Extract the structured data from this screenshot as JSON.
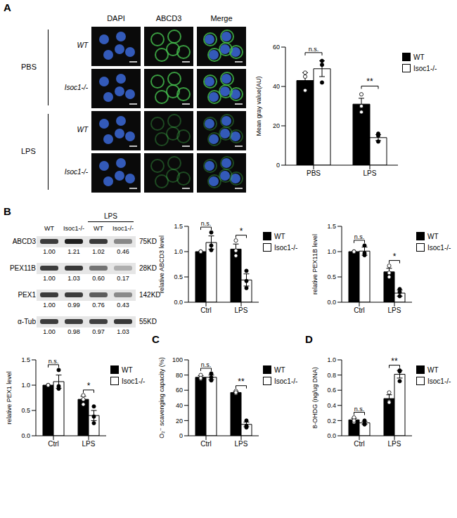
{
  "chart_data": [
    {
      "type": "image_grid",
      "panel": "A",
      "columns": [
        "DAPI",
        "ABCD3",
        "Merge"
      ],
      "groups": [
        {
          "label": "PBS",
          "rows": [
            "WT",
            "Isoc1-/-"
          ]
        },
        {
          "label": "LPS",
          "rows": [
            "WT",
            "Isoc1-/-"
          ]
        }
      ]
    },
    {
      "type": "bar",
      "y_label": "Mean gray value(AU)",
      "categories": [
        "PBS",
        "LPS"
      ],
      "series": [
        {
          "name": "WT",
          "color": "#000000",
          "marker": "circle",
          "values": [
            43,
            31
          ],
          "errors": [
            4,
            3
          ],
          "points": [
            [
              47,
              38,
              45
            ],
            [
              36,
              30,
              27
            ]
          ]
        },
        {
          "name": "Isoc1-/-",
          "color": "#ffffff",
          "marker": "circle",
          "values": [
            49,
            14
          ],
          "errors": [
            4,
            1.5
          ],
          "points": [
            [
              53,
              42,
              51
            ],
            [
              15,
              12,
              16
            ]
          ]
        }
      ],
      "significance": [
        "n.s.",
        "**"
      ],
      "ylim": [
        0,
        60
      ],
      "yticks": [
        0,
        20,
        40,
        60
      ],
      "legend": "right"
    },
    {
      "type": "blot",
      "panel": "B",
      "columns": [
        "WT",
        "Isoc1-/-",
        "WT",
        "Isoc1-/-"
      ],
      "column_group": {
        "label": "LPS",
        "columns": [
          2,
          3
        ]
      },
      "rows": [
        {
          "name": "ABCD3",
          "size": "75KD",
          "values": [
            1.0,
            1.21,
            1.02,
            0.46
          ],
          "value_labels": [
            "1.00",
            "1.21",
            "1.02",
            "0.46"
          ]
        },
        {
          "name": "PEX11B",
          "size": "28KD",
          "values": [
            1.0,
            1.03,
            0.6,
            0.17
          ],
          "value_labels": [
            "1.00",
            "1.03",
            "0.60",
            "0.17"
          ]
        },
        {
          "name": "PEX1",
          "size": "142KD",
          "values": [
            1.0,
            0.99,
            0.76,
            0.43
          ],
          "value_labels": [
            "1.00",
            "0.99",
            "0.76",
            "0.43"
          ]
        },
        {
          "name": "α-Tub",
          "size": "55KD",
          "values": [
            1.0,
            0.98,
            0.97,
            1.03
          ],
          "value_labels": [
            "1.00",
            "0.98",
            "0.97",
            "1.03"
          ]
        }
      ]
    },
    {
      "type": "bar",
      "y_label": "relative ABCD3 level",
      "categories": [
        "Ctrl",
        "LPS"
      ],
      "series": [
        {
          "name": "WT",
          "color": "#000000",
          "marker": "circle",
          "values": [
            1.0,
            1.05
          ],
          "errors": [
            0,
            0.1
          ],
          "points": [
            [
              1.0,
              1.0,
              1.0
            ],
            [
              1.22,
              1.02,
              0.92
            ]
          ]
        },
        {
          "name": "Isoc1-/-",
          "color": "#ffffff",
          "marker": "circle",
          "values": [
            1.18,
            0.44
          ],
          "errors": [
            0.13,
            0.12
          ],
          "points": [
            [
              1.38,
              1.12,
              1.03
            ],
            [
              0.62,
              0.42,
              0.28
            ]
          ]
        }
      ],
      "significance": [
        "n.s.",
        "*"
      ],
      "ylim": [
        0,
        1.5
      ],
      "yticks": [
        {
          "value": 0,
          "label": "0.0"
        },
        0.5,
        {
          "value": 1,
          "label": "1.0"
        },
        1.5
      ],
      "legend": "right"
    },
    {
      "type": "bar",
      "y_label": "relative PEX11B level",
      "categories": [
        "Ctrl",
        "LPS"
      ],
      "series": [
        {
          "name": "WT",
          "color": "#000000",
          "marker": "circle",
          "values": [
            1.0,
            0.6
          ],
          "errors": [
            0,
            0.07
          ],
          "points": [
            [
              1.0,
              1.0,
              1.0
            ],
            [
              0.72,
              0.58,
              0.5
            ]
          ]
        },
        {
          "name": "Isoc1-/-",
          "color": "#ffffff",
          "marker": "circle",
          "values": [
            1.01,
            0.18
          ],
          "errors": [
            0.08,
            0.06
          ],
          "points": [
            [
              1.12,
              0.97,
              0.93
            ],
            [
              0.26,
              0.12,
              0.2
            ]
          ]
        }
      ],
      "significance": [
        "n.s.",
        "*"
      ],
      "ylim": [
        0,
        1.5
      ],
      "yticks": [
        {
          "value": 0,
          "label": "0.0"
        },
        0.5,
        {
          "value": 1,
          "label": "1.0"
        },
        1.5
      ],
      "legend": "right"
    },
    {
      "type": "bar",
      "y_label": "relative PEX1 level",
      "categories": [
        "Ctrl",
        "LPS"
      ],
      "series": [
        {
          "name": "WT",
          "color": "#000000",
          "marker": "circle",
          "values": [
            1.0,
            0.72
          ],
          "errors": [
            0,
            0.06
          ],
          "points": [
            [
              1.0,
              1.0,
              1.0
            ],
            [
              0.8,
              0.72,
              0.62
            ]
          ]
        },
        {
          "name": "Isoc1-/-",
          "color": "#ffffff",
          "marker": "circle",
          "values": [
            1.07,
            0.4
          ],
          "errors": [
            0.13,
            0.1
          ],
          "points": [
            [
              1.3,
              0.93,
              0.98
            ],
            [
              0.58,
              0.38,
              0.25
            ]
          ]
        }
      ],
      "significance": [
        "n.s.",
        "*"
      ],
      "ylim": [
        0,
        1.5
      ],
      "yticks": [
        {
          "value": 0,
          "label": "0.0"
        },
        0.5,
        {
          "value": 1,
          "label": "1.0"
        },
        1.5
      ],
      "legend": "right"
    },
    {
      "type": "bar",
      "panel": "C",
      "y_label": "O₂⁻ scavenging capacity (%)",
      "categories": [
        "Ctrl",
        "LPS"
      ],
      "series": [
        {
          "name": "WT",
          "color": "#000000",
          "marker": "circle",
          "values": [
            77,
            57
          ],
          "errors": [
            2,
            1.5
          ],
          "points": [
            [
              80,
              75,
              76
            ],
            [
              59,
              56,
              57
            ]
          ]
        },
        {
          "name": "Isoc1-/-",
          "color": "#ffffff",
          "marker": "circle",
          "values": [
            77,
            15
          ],
          "errors": [
            3,
            3
          ],
          "points": [
            [
              82,
              73,
              77
            ],
            [
              20,
              13,
              11
            ]
          ]
        }
      ],
      "significance": [
        "n.s.",
        "**"
      ],
      "ylim": [
        0,
        100
      ],
      "yticks": [
        0,
        20,
        40,
        60,
        80,
        100
      ],
      "legend": "right"
    },
    {
      "type": "bar",
      "panel": "D",
      "y_label": "8-OHDG (ng/ug DNA)",
      "categories": [
        "Ctrl",
        "LPS"
      ],
      "series": [
        {
          "name": "WT",
          "color": "#000000",
          "marker": "circle",
          "values": [
            0.21,
            0.49
          ],
          "errors": [
            0.02,
            0.05
          ],
          "points": [
            [
              0.24,
              0.18,
              0.2
            ],
            [
              0.57,
              0.45,
              0.44
            ]
          ]
        },
        {
          "name": "Isoc1-/-",
          "color": "#ffffff",
          "marker": "circle",
          "values": [
            0.17,
            0.81
          ],
          "errors": [
            0.02,
            0.05
          ],
          "points": [
            [
              0.2,
              0.15,
              0.16
            ],
            [
              0.86,
              0.72,
              0.85
            ]
          ]
        }
      ],
      "significance": [
        "n.s.",
        "**"
      ],
      "ylim": [
        0,
        1
      ],
      "yticks": [
        {
          "value": 0,
          "label": "0.0"
        },
        0.2,
        0.4,
        0.6,
        0.8,
        {
          "value": 1,
          "label": "1.0"
        }
      ],
      "legend": "right"
    }
  ]
}
